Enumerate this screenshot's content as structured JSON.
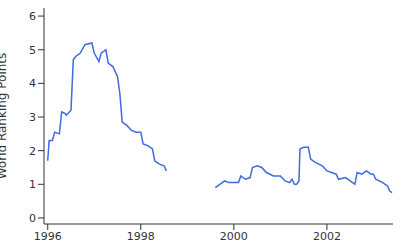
{
  "chart_data": {
    "type": "line",
    "y_label": "World Ranking Points",
    "color": "#4169e1",
    "grid": false,
    "xlim": [
      1995.92,
      2003.42
    ],
    "xticks": [
      1996,
      1998,
      2000,
      2002
    ],
    "ylim": [
      -0.18,
      6.24
    ],
    "yticks": [
      0,
      1,
      2,
      3,
      4,
      5,
      6
    ],
    "x": [
      1996.0,
      1996.03,
      1996.1,
      1996.15,
      1996.25,
      1996.3,
      1996.38,
      1996.4,
      1996.5,
      1996.55,
      1996.6,
      1996.7,
      1996.8,
      1996.95,
      1997.0,
      1997.1,
      1997.15,
      1997.25,
      1997.3,
      1997.4,
      1997.5,
      1997.55,
      1997.6,
      1997.7,
      1997.8,
      1997.9,
      1998.0,
      1998.05,
      1998.15,
      1998.25,
      1998.3,
      1998.4,
      1998.5,
      1998.55,
      1999.0,
      1999.6,
      1999.7,
      1999.8,
      1999.9,
      2000.0,
      2000.1,
      2000.15,
      2000.25,
      2000.35,
      2000.4,
      2000.5,
      2000.6,
      2000.7,
      2000.85,
      2001.0,
      2001.1,
      2001.2,
      2001.25,
      2001.3,
      2001.35,
      2001.4,
      2001.42,
      2001.5,
      2001.6,
      2001.65,
      2001.75,
      2001.9,
      2002.0,
      2002.1,
      2002.2,
      2002.25,
      2002.4,
      2002.5,
      2002.6,
      2002.65,
      2002.75,
      2002.85,
      2002.95,
      2003.0,
      2003.05,
      2003.2,
      2003.3,
      2003.35,
      2003.4
    ],
    "values": [
      1.7,
      2.3,
      2.3,
      2.55,
      2.5,
      3.15,
      3.1,
      3.05,
      3.2,
      4.7,
      4.8,
      4.9,
      5.15,
      5.2,
      4.9,
      4.65,
      4.9,
      5.0,
      4.6,
      4.5,
      4.2,
      3.7,
      2.85,
      2.75,
      2.6,
      2.55,
      2.55,
      2.2,
      2.15,
      2.05,
      1.7,
      1.6,
      1.55,
      1.4,
      null,
      0.9,
      1.0,
      1.1,
      1.05,
      1.05,
      1.05,
      1.25,
      1.15,
      1.2,
      1.5,
      1.55,
      1.5,
      1.35,
      1.25,
      1.25,
      1.1,
      1.05,
      1.15,
      1.0,
      1.0,
      1.1,
      2.05,
      2.1,
      2.1,
      1.75,
      1.65,
      1.55,
      1.4,
      1.35,
      1.3,
      1.15,
      1.2,
      1.1,
      1.0,
      1.35,
      1.3,
      1.4,
      1.3,
      1.3,
      1.15,
      1.05,
      0.95,
      0.8,
      0.75
    ]
  }
}
